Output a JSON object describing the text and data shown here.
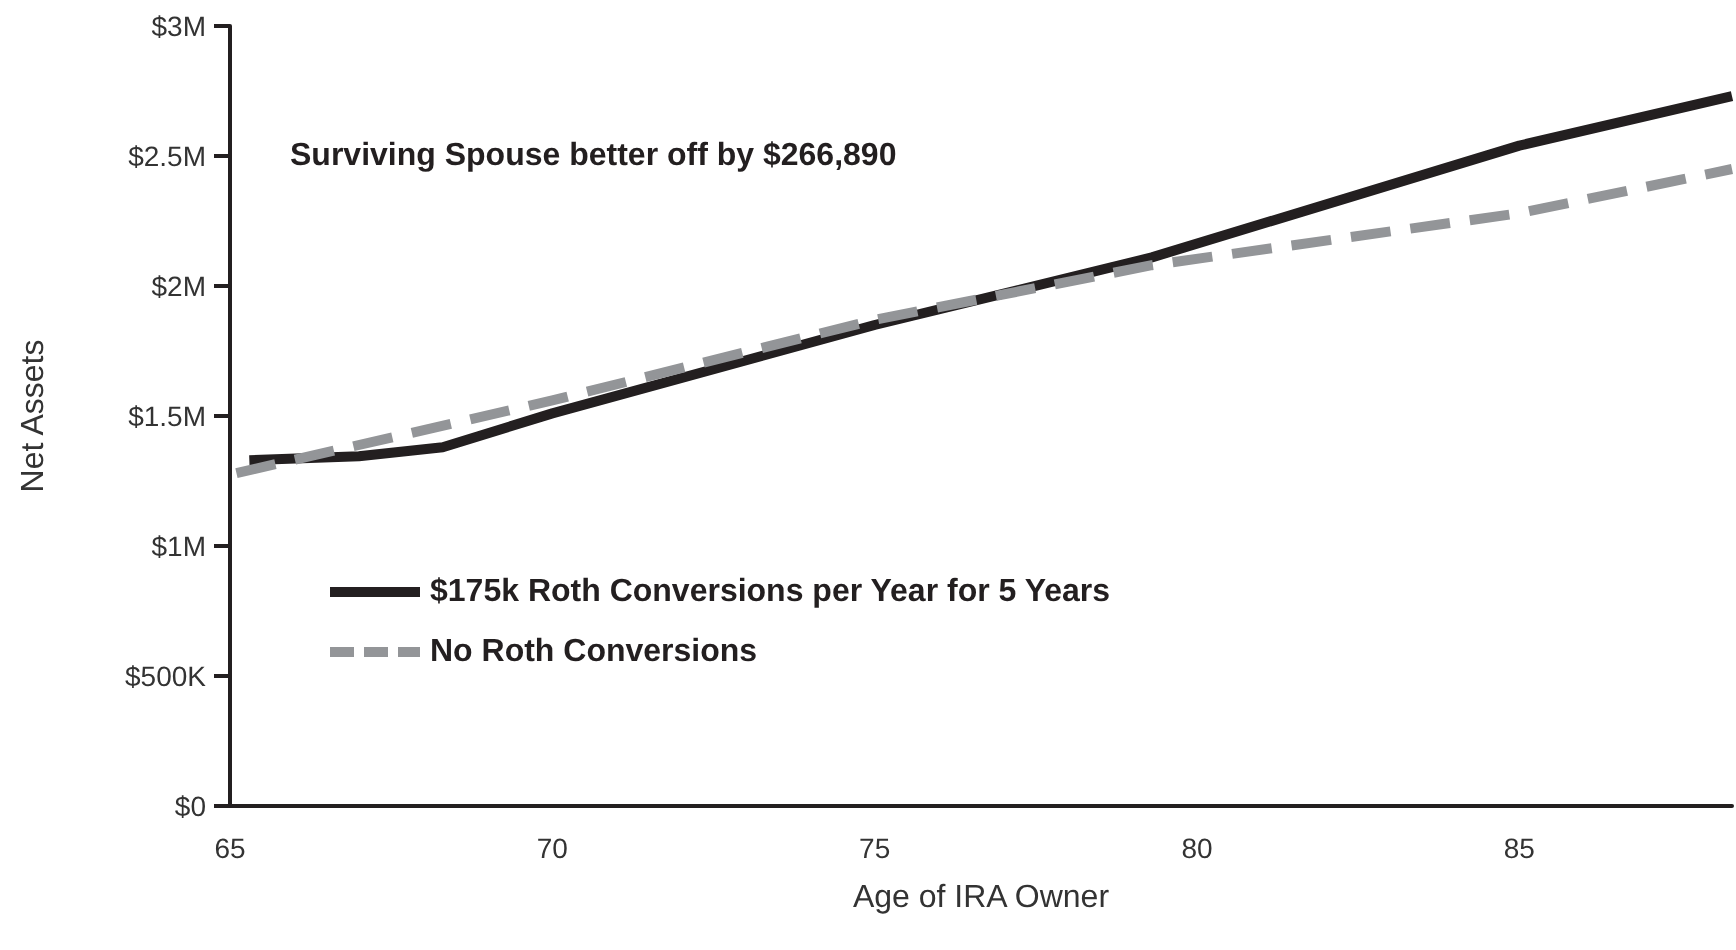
{
  "chart_data": {
    "type": "line",
    "xlabel": "Age of IRA Owner",
    "ylabel": "Net Assets",
    "annotations": [
      "Surviving Spouse better off by $266,890"
    ],
    "xlim": [
      65,
      88.3
    ],
    "xticks": [
      65,
      70,
      75,
      80,
      85
    ],
    "ylim": [
      0,
      3000000
    ],
    "yticks": [
      {
        "value": 0,
        "label": "$0"
      },
      {
        "value": 500000,
        "label": "$500K"
      },
      {
        "value": 1000000,
        "label": "$1M"
      },
      {
        "value": 1500000,
        "label": "$1.5M"
      },
      {
        "value": 2000000,
        "label": "$2M"
      },
      {
        "value": 2500000,
        "label": "$2.5M"
      },
      {
        "value": 3000000,
        "label": "$3M"
      }
    ],
    "grid": false,
    "legend": "left",
    "marker": "none",
    "series": [
      {
        "name": "$175k Roth Conversions per Year for 5 Years",
        "color": "#231f20",
        "line_style": "solid",
        "x": [
          65.3,
          67,
          68.3,
          70,
          75,
          79.3,
          85,
          88.3
        ],
        "values": [
          1330000,
          1345000,
          1380000,
          1510000,
          1850000,
          2110000,
          2540000,
          2730000
        ]
      },
      {
        "name": "No Roth Conversions",
        "color": "#939598",
        "line_style": "dashed",
        "x": [
          65.1,
          70,
          75,
          79.3,
          85,
          88.3
        ],
        "values": [
          1280000,
          1560000,
          1870000,
          2080000,
          2280000,
          2450000
        ]
      }
    ]
  }
}
